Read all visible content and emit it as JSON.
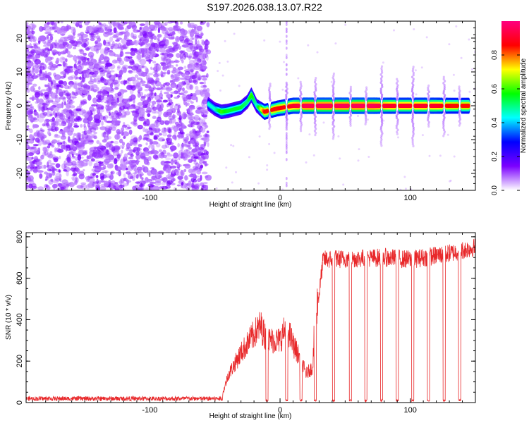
{
  "title": "S197.2026.038.13.07.R22",
  "chart_data": [
    {
      "type": "heatmap",
      "name": "spectrogram",
      "xlabel": "Height of straight line (km)",
      "ylabel": "Frequency (Hz)",
      "xlim": [
        -195,
        150
      ],
      "ylim": [
        -25,
        25
      ],
      "xticks": [
        -100,
        0,
        100
      ],
      "yticks": [
        -20,
        -10,
        0,
        10,
        20
      ],
      "colorbar": {
        "label": "Normalized spectral amplitude",
        "range": [
          0,
          1
        ],
        "ticks": [
          0.0,
          0.2,
          0.4,
          0.6,
          0.8
        ],
        "colormap": [
          "#ffffff",
          "#7b00ff",
          "#0000ff",
          "#00ffff",
          "#00ff00",
          "#ffff00",
          "#ff0000",
          "#ff007f"
        ]
      },
      "noise_region": [
        -195,
        -55
      ],
      "signal_track": [
        {
          "x": -55,
          "y": 0.5,
          "amp": 0.45
        },
        {
          "x": -50,
          "y": -1.0,
          "amp": 0.45
        },
        {
          "x": -45,
          "y": -1.8,
          "amp": 0.6
        },
        {
          "x": -40,
          "y": -1.5,
          "amp": 0.55
        },
        {
          "x": -35,
          "y": -1.0,
          "amp": 0.55
        },
        {
          "x": -30,
          "y": -0.5,
          "amp": 0.55
        },
        {
          "x": -25,
          "y": 1.2,
          "amp": 0.5
        },
        {
          "x": -22,
          "y": 3.2,
          "amp": 0.6
        },
        {
          "x": -18,
          "y": 0.0,
          "amp": 0.45
        },
        {
          "x": -12,
          "y": -1.8,
          "amp": 0.85
        },
        {
          "x": -2,
          "y": -0.8,
          "amp": 0.85
        },
        {
          "x": 10,
          "y": 0.0,
          "amp": 0.9
        },
        {
          "x": 20,
          "y": 0.0,
          "amp": 0.95
        },
        {
          "x": 35,
          "y": 0.0,
          "amp": 0.95
        },
        {
          "x": 48,
          "y": 0.0,
          "amp": 0.95
        },
        {
          "x": 60,
          "y": 0.0,
          "amp": 0.95
        },
        {
          "x": 72,
          "y": 0.0,
          "amp": 0.95
        },
        {
          "x": 84,
          "y": 0.0,
          "amp": 0.9
        },
        {
          "x": 96,
          "y": 0.0,
          "amp": 0.9
        },
        {
          "x": 108,
          "y": 0.0,
          "amp": 0.9
        },
        {
          "x": 120,
          "y": 0.0,
          "amp": 0.9
        },
        {
          "x": 132,
          "y": 0.0,
          "amp": 0.85
        },
        {
          "x": 145,
          "y": 0.0,
          "amp": 0.85
        }
      ],
      "gaps": [
        -8,
        5,
        16,
        27,
        41,
        54,
        66,
        78,
        90,
        102,
        114,
        126,
        138
      ],
      "vertical_stripe": 5
    },
    {
      "type": "line",
      "name": "snr",
      "xlabel": "Height of straight line (km)",
      "ylabel": "SNR (10 * v/v)",
      "xlim": [
        -195,
        150
      ],
      "ylim": [
        0,
        820
      ],
      "xticks": [
        -100,
        0,
        100
      ],
      "yticks": [
        0,
        200,
        400,
        600,
        800
      ],
      "color": "#e8282a",
      "envelope": [
        {
          "x": -195,
          "y": 20
        },
        {
          "x": -45,
          "y": 20
        },
        {
          "x": -40,
          "y": 130
        },
        {
          "x": -30,
          "y": 240
        },
        {
          "x": -20,
          "y": 330
        },
        {
          "x": -15,
          "y": 370
        },
        {
          "x": -10,
          "y": 300
        },
        {
          "x": 0,
          "y": 300
        },
        {
          "x": 5,
          "y": 370
        },
        {
          "x": 10,
          "y": 280
        },
        {
          "x": 15,
          "y": 220
        },
        {
          "x": 20,
          "y": 140
        },
        {
          "x": 25,
          "y": 170
        },
        {
          "x": 27,
          "y": 440
        },
        {
          "x": 30,
          "y": 520
        },
        {
          "x": 33,
          "y": 690
        },
        {
          "x": 80,
          "y": 700
        },
        {
          "x": 100,
          "y": 690
        },
        {
          "x": 130,
          "y": 720
        },
        {
          "x": 150,
          "y": 750
        }
      ],
      "dips": [
        -10,
        5,
        16,
        27,
        41,
        54,
        66,
        78,
        90,
        102,
        114,
        126,
        138
      ]
    }
  ]
}
